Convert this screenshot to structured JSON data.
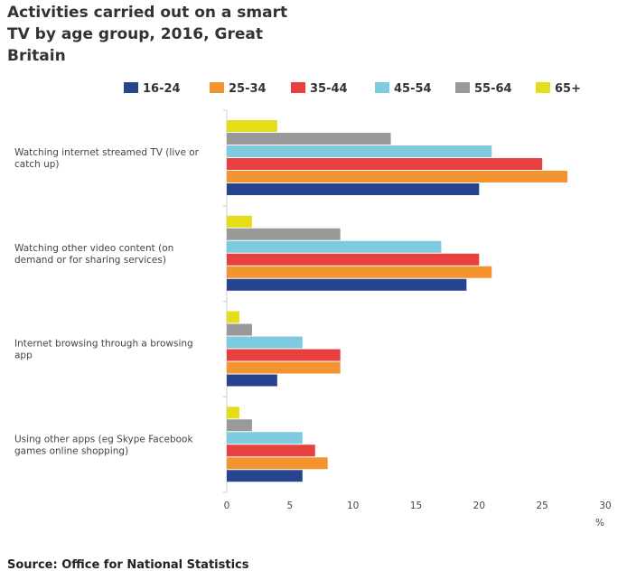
{
  "chart_data": {
    "type": "bar",
    "orientation": "horizontal",
    "title": "Activities carried out on a smart TV by age group, 2016, Great Britain",
    "source": "Source: Office for National Statistics",
    "categories": [
      "Watching internet streamed TV (live or catch up)",
      "Watching other video content (on demand or for sharing services)",
      "Internet browsing through a browsing app",
      "Using other apps (eg Skype Facebook games online shopping)"
    ],
    "series": [
      {
        "name": "16-24",
        "color": "#27448f",
        "values": [
          20,
          19,
          4,
          6
        ]
      },
      {
        "name": "25-34",
        "color": "#f39431",
        "values": [
          27,
          21,
          9,
          8
        ]
      },
      {
        "name": "35-44",
        "color": "#e83f3f",
        "values": [
          25,
          20,
          9,
          7
        ]
      },
      {
        "name": "45-54",
        "color": "#7ecae1",
        "values": [
          21,
          17,
          6,
          6
        ]
      },
      {
        "name": "55-64",
        "color": "#999999",
        "values": [
          13,
          9,
          2,
          2
        ]
      },
      {
        "name": "65+",
        "color": "#e6dd1a",
        "values": [
          4,
          2,
          1,
          1
        ]
      }
    ],
    "xlim": [
      0,
      30
    ],
    "xticks": [
      "0",
      "5",
      "10",
      "15",
      "20",
      "25",
      "30"
    ],
    "xunit": "%",
    "legend": "top",
    "grid": false
  }
}
